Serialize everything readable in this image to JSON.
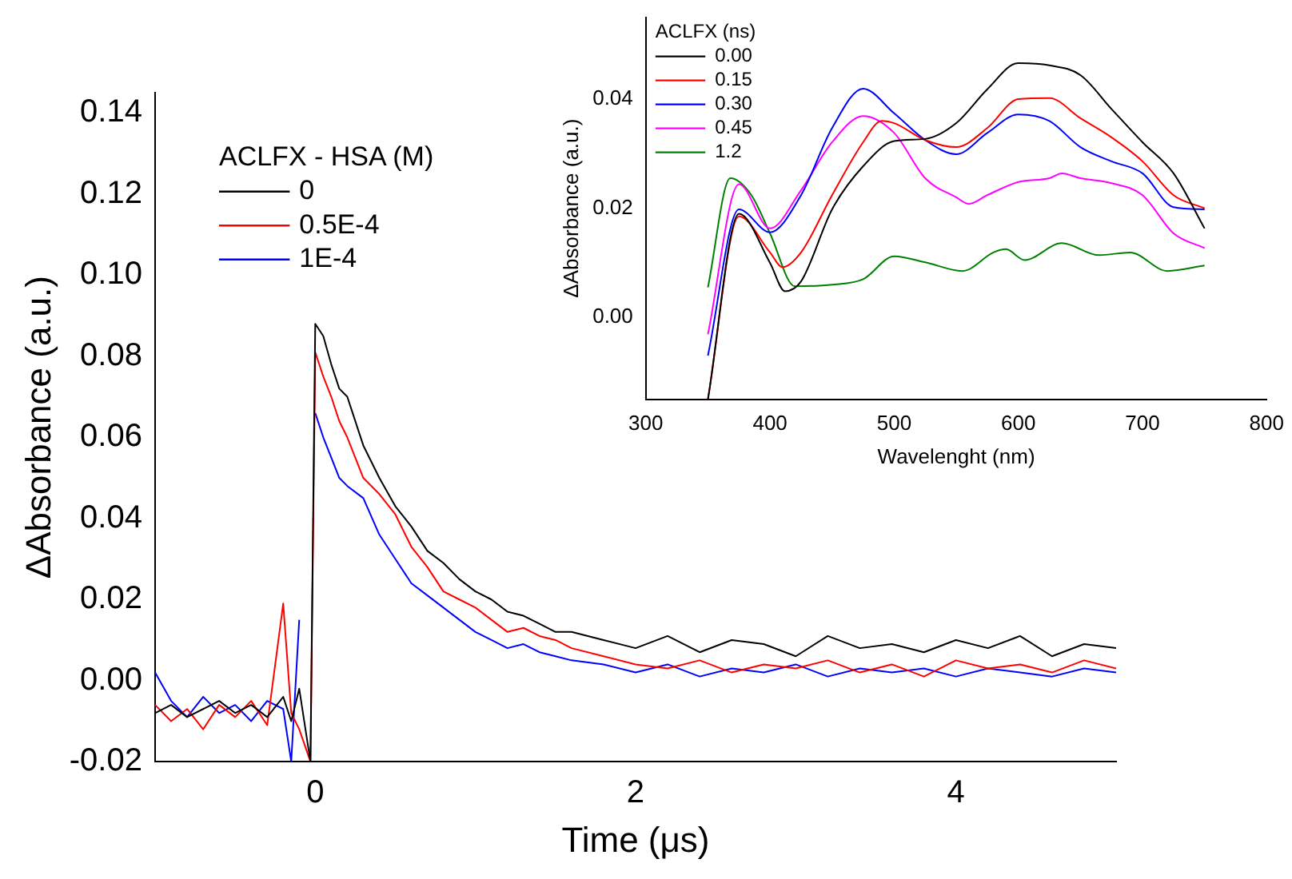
{
  "chart_data": [
    {
      "type": "line",
      "xlabel": "Time (μs)",
      "ylabel": "ΔAbsorbance (a.u.)",
      "legend_title": "ACLFX - HSA (M)",
      "legend": "top left",
      "grid": false,
      "marker": "none",
      "xlim": [
        -1,
        5
      ],
      "xticks": [
        0,
        2,
        4
      ],
      "ylim": [
        -0.02,
        0.145
      ],
      "yticks": [
        {
          "value": -0.02,
          "label": "-0.02"
        },
        {
          "value": 0,
          "label": "0.00"
        },
        {
          "value": 0.02,
          "label": "0.02"
        },
        {
          "value": 0.04,
          "label": "0.04"
        },
        {
          "value": 0.06,
          "label": "0.06"
        },
        {
          "value": 0.08,
          "label": "0.08"
        },
        {
          "value": 0.1,
          "label": "0.10"
        },
        {
          "value": 0.12,
          "label": "0.12"
        },
        {
          "value": 0.14,
          "label": "0.14"
        }
      ],
      "x": [
        -1,
        -0.9,
        -0.8,
        -0.7,
        -0.6,
        -0.5,
        -0.4,
        -0.3,
        -0.2,
        -0.15,
        -0.1,
        -0.03,
        0,
        0.05,
        0.1,
        0.15,
        0.2,
        0.3,
        0.4,
        0.5,
        0.6,
        0.7,
        0.8,
        0.9,
        1.0,
        1.1,
        1.2,
        1.3,
        1.4,
        1.5,
        1.6,
        1.8,
        2.0,
        2.2,
        2.4,
        2.6,
        2.8,
        3.0,
        3.2,
        3.4,
        3.6,
        3.8,
        4.0,
        4.2,
        4.4,
        4.6,
        4.8,
        5.0
      ],
      "series": [
        {
          "name": "0",
          "color": "#000000",
          "values": [
            -0.008,
            -0.006,
            -0.009,
            -0.007,
            -0.005,
            -0.008,
            -0.006,
            -0.009,
            -0.004,
            -0.01,
            -0.002,
            -0.02,
            0.088,
            0.085,
            0.078,
            0.072,
            0.07,
            0.058,
            0.05,
            0.043,
            0.038,
            0.032,
            0.029,
            0.025,
            0.022,
            0.02,
            0.017,
            0.016,
            0.014,
            0.012,
            0.012,
            0.01,
            0.008,
            0.011,
            0.007,
            0.01,
            0.009,
            0.006,
            0.011,
            0.008,
            0.009,
            0.007,
            0.01,
            0.008,
            0.011,
            0.006,
            0.009,
            0.008
          ]
        },
        {
          "name": "0.5E-4",
          "color": "#ff0000",
          "values": [
            -0.006,
            -0.01,
            -0.007,
            -0.012,
            -0.006,
            -0.009,
            -0.005,
            -0.011,
            0.019,
            -0.008,
            -0.012,
            -0.02,
            0.081,
            0.075,
            0.07,
            0.064,
            0.06,
            0.05,
            0.046,
            0.041,
            0.033,
            0.028,
            0.022,
            0.02,
            0.018,
            0.015,
            0.012,
            0.013,
            0.011,
            0.01,
            0.008,
            0.006,
            0.004,
            0.003,
            0.005,
            0.002,
            0.004,
            0.003,
            0.005,
            0.002,
            0.004,
            0.001,
            0.005,
            0.003,
            0.004,
            0.002,
            0.005,
            0.003
          ]
        },
        {
          "name": "1E-4",
          "color": "#0000ff",
          "values": [
            0.002,
            -0.005,
            -0.009,
            -0.004,
            -0.008,
            -0.006,
            -0.01,
            -0.005,
            -0.007,
            -0.02,
            0.015,
            null,
            0.066,
            0.06,
            0.055,
            0.05,
            0.048,
            0.045,
            0.036,
            0.03,
            0.024,
            0.021,
            0.018,
            0.015,
            0.012,
            0.01,
            0.008,
            0.009,
            0.007,
            0.006,
            0.005,
            0.004,
            0.002,
            0.004,
            0.001,
            0.003,
            0.002,
            0.004,
            0.001,
            0.003,
            0.002,
            0.003,
            0.001,
            0.003,
            0.002,
            0.001,
            0.003,
            0.002
          ]
        }
      ]
    },
    {
      "type": "line",
      "xlabel": "Wavelenght (nm)",
      "ylabel": "ΔAbsorbance (a.u.)",
      "legend_title": "ACLFX (ns)",
      "legend": "top left",
      "grid": false,
      "marker": "none",
      "xlim": [
        300,
        800
      ],
      "xticks": [
        300,
        400,
        500,
        600,
        700,
        800
      ],
      "ylim": [
        -0.015,
        0.055
      ],
      "yticks": [
        {
          "value": 0,
          "label": "0.00"
        },
        {
          "value": 0.02,
          "label": "0.02"
        },
        {
          "value": 0.04,
          "label": "0.04"
        }
      ],
      "series": [
        {
          "name": "0.00",
          "color": "#000000",
          "x": [
            350,
            375,
            400,
            412,
            425,
            450,
            475,
            500,
            525,
            550,
            575,
            600,
            625,
            650,
            675,
            700,
            725,
            750
          ],
          "values": [
            -0.015,
            0.019,
            0.01,
            0.0048,
            0.0066,
            0.0198,
            0.0277,
            0.0323,
            0.0327,
            0.0356,
            0.0418,
            0.0466,
            0.0462,
            0.0444,
            0.0382,
            0.0321,
            0.0264,
            0.0163
          ]
        },
        {
          "name": "0.15",
          "color": "#ff0000",
          "x": [
            350,
            375,
            400,
            410,
            425,
            450,
            475,
            490,
            500,
            525,
            550,
            575,
            600,
            625,
            650,
            675,
            700,
            725,
            750
          ],
          "values": [
            -0.015,
            0.0185,
            0.0119,
            0.0092,
            0.0119,
            0.0224,
            0.0321,
            0.036,
            0.0356,
            0.0325,
            0.0312,
            0.0347,
            0.04,
            0.0402,
            0.0365,
            0.033,
            0.0286,
            0.0224,
            0.02
          ]
        },
        {
          "name": "0.30",
          "color": "#0000ff",
          "x": [
            350,
            375,
            400,
            425,
            450,
            475,
            500,
            525,
            550,
            575,
            600,
            625,
            650,
            675,
            700,
            725,
            750
          ],
          "values": [
            -0.007,
            0.0198,
            0.0156,
            0.0224,
            0.0347,
            0.0419,
            0.0374,
            0.0325,
            0.0299,
            0.0338,
            0.0372,
            0.036,
            0.0312,
            0.0286,
            0.0264,
            0.0202,
            0.0198
          ]
        },
        {
          "name": "0.45",
          "color": "#ff00ff",
          "x": [
            350,
            375,
            400,
            425,
            450,
            475,
            500,
            525,
            550,
            560,
            575,
            600,
            625,
            635,
            650,
            675,
            700,
            725,
            750
          ],
          "values": [
            -0.0031,
            0.0244,
            0.0163,
            0.0233,
            0.0321,
            0.0369,
            0.0338,
            0.0255,
            0.022,
            0.0208,
            0.0224,
            0.0248,
            0.0255,
            0.0264,
            0.0255,
            0.0246,
            0.0224,
            0.0154,
            0.0127
          ]
        },
        {
          "name": "1.2",
          "color": "#008000",
          "x": [
            350,
            368,
            385,
            400,
            420,
            450,
            475,
            500,
            525,
            555,
            580,
            590,
            605,
            635,
            665,
            690,
            720,
            750
          ],
          "values": [
            0.0055,
            0.0255,
            0.0224,
            0.0154,
            0.0057,
            0.006,
            0.007,
            0.0112,
            0.0101,
            0.0085,
            0.0119,
            0.0125,
            0.0105,
            0.0136,
            0.0114,
            0.0119,
            0.0085,
            0.0095
          ]
        }
      ]
    }
  ]
}
